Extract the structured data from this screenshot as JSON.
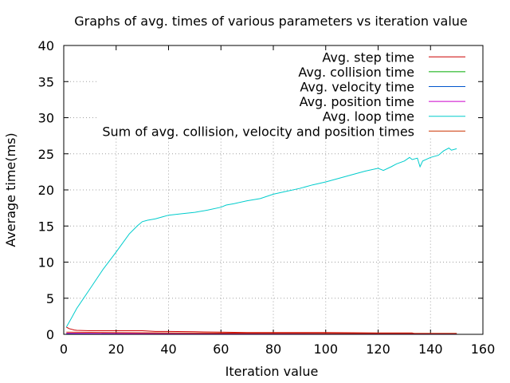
{
  "chart_data": {
    "type": "line",
    "title": "Graphs of avg. times of various parameters vs iteration value",
    "xlabel": "Iteration value",
    "ylabel": "Average time(ms)",
    "xlim": [
      0,
      160
    ],
    "ylim": [
      0,
      40
    ],
    "xticks": [
      0,
      20,
      40,
      60,
      80,
      100,
      120,
      140,
      160
    ],
    "yticks": [
      0,
      5,
      10,
      15,
      20,
      25,
      30,
      35,
      40
    ],
    "grid": true,
    "legend_position": "top-right",
    "series": [
      {
        "name": "Avg. step time",
        "color": "#cc0000",
        "x": [
          1,
          2,
          3,
          4,
          5,
          10,
          20,
          30,
          35,
          40,
          50,
          60,
          70,
          80,
          100,
          120,
          133,
          134,
          140,
          150
        ],
        "y": [
          1.0,
          0.8,
          0.7,
          0.6,
          0.55,
          0.5,
          0.5,
          0.5,
          0.4,
          0.4,
          0.35,
          0.3,
          0.25,
          0.25,
          0.25,
          0.2,
          0.2,
          0.1,
          0.1,
          0.05
        ]
      },
      {
        "name": "Avg. collision time",
        "color": "#00aa00",
        "x": [
          1,
          30,
          60,
          100,
          150
        ],
        "y": [
          0.08,
          0.07,
          0.06,
          0.05,
          0.05
        ]
      },
      {
        "name": "Avg. velocity time",
        "color": "#0055cc",
        "x": [
          1,
          30,
          60,
          100,
          150
        ],
        "y": [
          0.06,
          0.05,
          0.05,
          0.04,
          0.04
        ]
      },
      {
        "name": "Avg. position time",
        "color": "#cc00cc",
        "x": [
          1,
          20,
          30,
          40,
          60,
          100,
          150
        ],
        "y": [
          0.15,
          0.12,
          0.1,
          0.08,
          0.06,
          0.05,
          0.04
        ]
      },
      {
        "name": "Avg. loop time",
        "color": "#00cccc",
        "x": [
          1,
          3,
          5,
          10,
          15,
          20,
          25,
          28,
          30,
          32,
          35,
          38,
          40,
          45,
          50,
          55,
          60,
          62,
          65,
          70,
          75,
          80,
          85,
          90,
          95,
          100,
          105,
          110,
          115,
          120,
          122,
          125,
          127,
          130,
          132,
          133,
          135,
          136,
          137,
          140,
          143,
          145,
          147,
          148,
          150
        ],
        "y": [
          1.0,
          2.3,
          3.6,
          6.3,
          9.0,
          11.4,
          13.9,
          15.0,
          15.6,
          15.8,
          16.0,
          16.3,
          16.5,
          16.7,
          16.9,
          17.2,
          17.6,
          17.9,
          18.1,
          18.5,
          18.8,
          19.4,
          19.8,
          20.2,
          20.7,
          21.1,
          21.6,
          22.1,
          22.6,
          23.0,
          22.7,
          23.2,
          23.6,
          24.0,
          24.5,
          24.2,
          24.4,
          23.2,
          24.0,
          24.5,
          24.8,
          25.4,
          25.8,
          25.5,
          25.7
        ]
      },
      {
        "name": "Sum of avg. collision, velocity and position times",
        "color": "#cc3300",
        "x": [
          1,
          30,
          60,
          100,
          150
        ],
        "y": [
          0.3,
          0.22,
          0.17,
          0.14,
          0.13
        ]
      }
    ]
  }
}
